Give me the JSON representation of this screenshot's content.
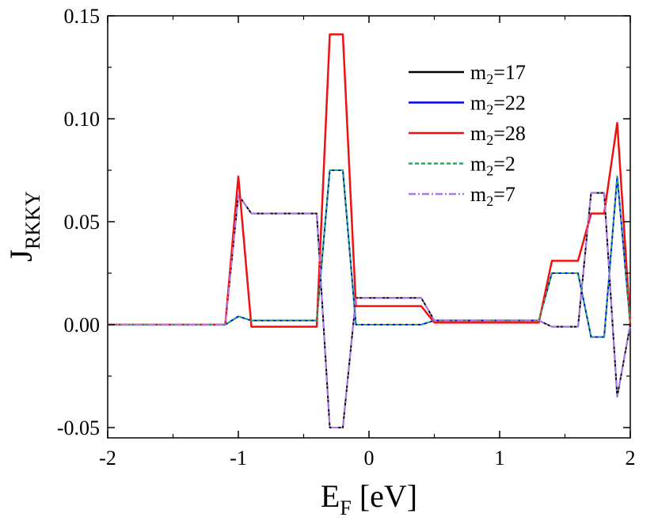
{
  "chart_data": {
    "type": "line",
    "xlabel": "E",
    "xlabel_sub": "F",
    "xlabel_unit": " [eV]",
    "ylabel": "J",
    "ylabel_sub": "RKKY",
    "xlim": [
      -2,
      2
    ],
    "ylim": [
      -0.055,
      0.15
    ],
    "xticks": [
      -2,
      -1,
      0,
      1,
      2
    ],
    "xtick_labels": [
      "-2",
      "-1",
      "0",
      "1",
      "2"
    ],
    "yticks": [
      -0.05,
      0.0,
      0.05,
      0.1,
      0.15
    ],
    "ytick_labels": [
      "-0.05",
      "0.00",
      "0.05",
      "0.10",
      "0.15"
    ],
    "grid": false,
    "legend_position": "top-right",
    "x": [
      -2.0,
      -1.9,
      -1.8,
      -1.7,
      -1.6,
      -1.5,
      -1.4,
      -1.3,
      -1.2,
      -1.1,
      -1.0,
      -0.9,
      -0.8,
      -0.7,
      -0.6,
      -0.5,
      -0.4,
      -0.3,
      -0.2,
      -0.1,
      0.0,
      0.1,
      0.2,
      0.3,
      0.4,
      0.5,
      0.6,
      0.7,
      0.8,
      0.9,
      1.0,
      1.1,
      1.2,
      1.3,
      1.4,
      1.5,
      1.6,
      1.7,
      1.8,
      1.9,
      2.0
    ],
    "series": [
      {
        "name": "17",
        "color": "#000000",
        "dash": "solid",
        "values": [
          0,
          0,
          0,
          0,
          0,
          0,
          0,
          0,
          0,
          0,
          0.063,
          0.054,
          0.054,
          0.054,
          0.054,
          0.054,
          0.054,
          -0.05,
          -0.05,
          0.013,
          0.013,
          0.013,
          0.013,
          0.013,
          0.013,
          0.002,
          0.002,
          0.002,
          0.002,
          0.002,
          0.002,
          0.002,
          0.002,
          0.002,
          -0.001,
          -0.001,
          -0.001,
          0.064,
          0.064,
          -0.035,
          0.0
        ]
      },
      {
        "name": "22",
        "color": "#0000ee",
        "dash": "solid",
        "values": [
          0,
          0,
          0,
          0,
          0,
          0,
          0,
          0,
          0,
          0,
          0.004,
          0.002,
          0.002,
          0.002,
          0.002,
          0.002,
          0.002,
          0.075,
          0.075,
          0.0,
          0.0,
          0.0,
          0.0,
          0.0,
          0.0,
          0.002,
          0.002,
          0.002,
          0.002,
          0.002,
          0.002,
          0.002,
          0.002,
          0.002,
          0.025,
          0.025,
          0.025,
          -0.006,
          -0.006,
          0.072,
          0.0
        ]
      },
      {
        "name": "28",
        "color": "#ee1111",
        "dash": "solid",
        "values": [
          0,
          0,
          0,
          0,
          0,
          0,
          0,
          0,
          0,
          0,
          0.072,
          -0.001,
          -0.001,
          -0.001,
          -0.001,
          -0.001,
          -0.001,
          0.141,
          0.141,
          0.009,
          0.009,
          0.009,
          0.009,
          0.009,
          0.009,
          0.001,
          0.001,
          0.001,
          0.001,
          0.001,
          0.001,
          0.001,
          0.001,
          0.001,
          0.031,
          0.031,
          0.031,
          0.054,
          0.054,
          0.098,
          0.0
        ]
      },
      {
        "name": "2",
        "color": "#22aa66",
        "dash": "dashed",
        "values": [
          0,
          0,
          0,
          0,
          0,
          0,
          0,
          0,
          0,
          0,
          0.004,
          0.002,
          0.002,
          0.002,
          0.002,
          0.002,
          0.002,
          0.075,
          0.075,
          0.0,
          0.0,
          0.0,
          0.0,
          0.0,
          0.0,
          0.002,
          0.002,
          0.002,
          0.002,
          0.002,
          0.002,
          0.002,
          0.002,
          0.002,
          0.025,
          0.025,
          0.025,
          -0.006,
          -0.006,
          0.072,
          0.0
        ]
      },
      {
        "name": "7",
        "color": "#aa77ee",
        "dash": "dashdot",
        "values": [
          0,
          0,
          0,
          0,
          0,
          0,
          0,
          0,
          0,
          0,
          0.063,
          0.054,
          0.054,
          0.054,
          0.054,
          0.054,
          0.054,
          -0.05,
          -0.05,
          0.013,
          0.013,
          0.013,
          0.013,
          0.013,
          0.013,
          0.002,
          0.002,
          0.002,
          0.002,
          0.002,
          0.002,
          0.002,
          0.002,
          0.002,
          -0.001,
          -0.001,
          -0.001,
          0.064,
          0.064,
          -0.035,
          0.0
        ]
      }
    ],
    "legend_prefix": "m",
    "legend_sub": "2",
    "legend_eq": "="
  }
}
